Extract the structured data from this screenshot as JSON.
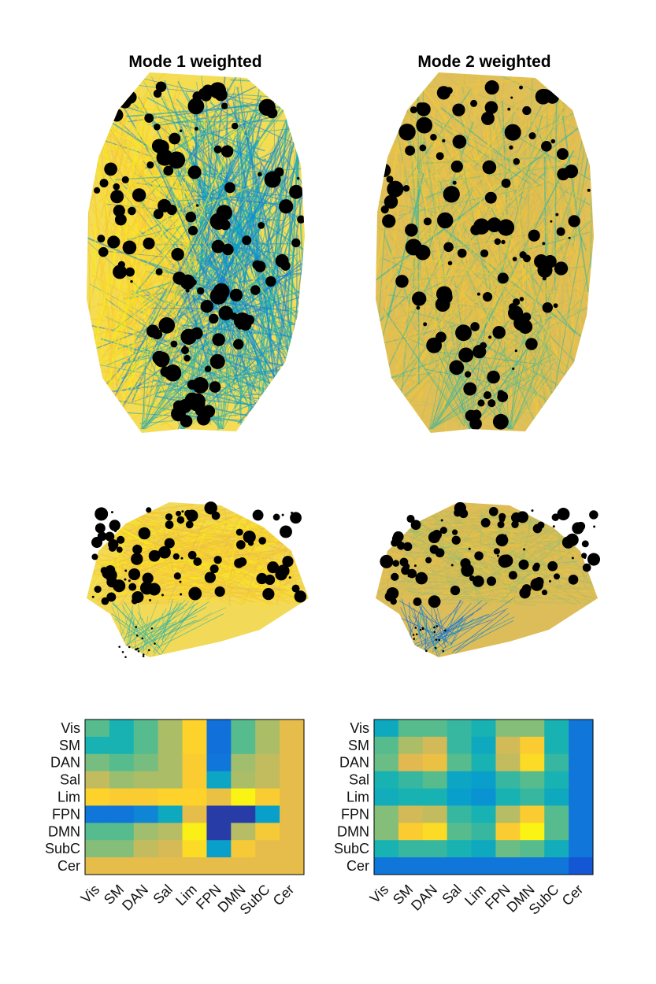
{
  "figure": {
    "panels": [
      {
        "title": "Mode 1 weighted",
        "edge_palette": "yellow-left / blue-right"
      },
      {
        "title": "Mode 2 weighted",
        "edge_palette": "mostly orange-yellow"
      }
    ]
  },
  "chart_data": [
    {
      "type": "heatmap",
      "title": "",
      "rows": [
        "Vis",
        "SM",
        "DAN",
        "Sal",
        "Lim",
        "FPN",
        "DMN",
        "SubC",
        "Cer"
      ],
      "cols": [
        "Vis",
        "SM",
        "DAN",
        "Sal",
        "Lim",
        "FPN",
        "DMN",
        "SubC",
        "Cer"
      ],
      "colormap": "parula",
      "values": [
        [
          0.55,
          0.45,
          0.55,
          0.68,
          0.9,
          0.18,
          0.55,
          0.68,
          0.8
        ],
        [
          0.45,
          0.45,
          0.55,
          0.68,
          0.9,
          0.18,
          0.55,
          0.68,
          0.8
        ],
        [
          0.6,
          0.55,
          0.6,
          0.68,
          0.88,
          0.2,
          0.66,
          0.72,
          0.8
        ],
        [
          0.72,
          0.65,
          0.68,
          0.68,
          0.88,
          0.38,
          0.68,
          0.72,
          0.8
        ],
        [
          0.9,
          0.88,
          0.88,
          0.9,
          0.9,
          0.82,
          0.98,
          0.88,
          0.8
        ],
        [
          0.2,
          0.2,
          0.25,
          0.4,
          0.8,
          0.04,
          0.04,
          0.35,
          0.8
        ],
        [
          0.55,
          0.55,
          0.66,
          0.7,
          0.97,
          0.04,
          0.7,
          0.86,
          0.8
        ],
        [
          0.62,
          0.62,
          0.72,
          0.76,
          0.92,
          0.35,
          0.86,
          0.8,
          0.8
        ],
        [
          0.8,
          0.8,
          0.8,
          0.8,
          0.8,
          0.8,
          0.8,
          0.8,
          0.8
        ]
      ]
    },
    {
      "type": "heatmap",
      "title": "",
      "rows": [
        "Vis",
        "SM",
        "DAN",
        "Sal",
        "Lim",
        "FPN",
        "DMN",
        "SubC",
        "Cer"
      ],
      "cols": [
        "Vis",
        "SM",
        "DAN",
        "Sal",
        "Lim",
        "FPN",
        "DMN",
        "SubC",
        "Cer"
      ],
      "colormap": "parula",
      "values": [
        [
          0.4,
          0.55,
          0.55,
          0.5,
          0.45,
          0.62,
          0.62,
          0.45,
          0.2
        ],
        [
          0.55,
          0.68,
          0.75,
          0.5,
          0.4,
          0.75,
          0.88,
          0.45,
          0.2
        ],
        [
          0.58,
          0.78,
          0.82,
          0.55,
          0.45,
          0.72,
          0.92,
          0.5,
          0.2
        ],
        [
          0.45,
          0.5,
          0.55,
          0.38,
          0.35,
          0.5,
          0.55,
          0.45,
          0.2
        ],
        [
          0.42,
          0.45,
          0.45,
          0.35,
          0.3,
          0.45,
          0.5,
          0.4,
          0.2
        ],
        [
          0.62,
          0.75,
          0.72,
          0.5,
          0.45,
          0.7,
          0.88,
          0.55,
          0.2
        ],
        [
          0.62,
          0.88,
          0.92,
          0.55,
          0.5,
          0.88,
          0.98,
          0.55,
          0.2
        ],
        [
          0.45,
          0.5,
          0.5,
          0.45,
          0.4,
          0.58,
          0.55,
          0.42,
          0.2
        ],
        [
          0.2,
          0.2,
          0.2,
          0.2,
          0.2,
          0.2,
          0.2,
          0.2,
          0.1
        ]
      ]
    }
  ]
}
